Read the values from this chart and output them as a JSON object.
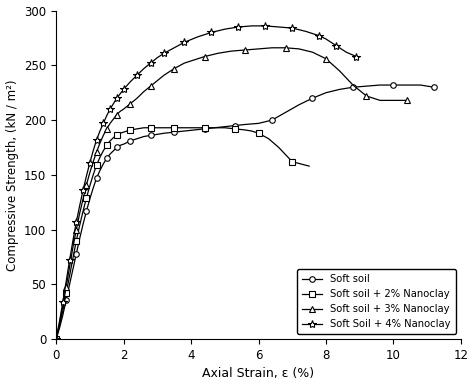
{
  "xlabel": "Axial Strain, ε (%)",
  "ylabel": "Compressive Strength, (kN / m²)",
  "xlim": [
    0,
    12
  ],
  "ylim": [
    0,
    300
  ],
  "xticks": [
    0,
    2,
    4,
    6,
    8,
    10,
    12
  ],
  "yticks": [
    0,
    50,
    100,
    150,
    200,
    250,
    300
  ],
  "soft_soil_x": [
    0,
    0.1,
    0.2,
    0.3,
    0.4,
    0.5,
    0.6,
    0.7,
    0.8,
    0.9,
    1.0,
    1.1,
    1.2,
    1.3,
    1.4,
    1.5,
    1.6,
    1.7,
    1.8,
    1.9,
    2.0,
    2.2,
    2.4,
    2.6,
    2.8,
    3.0,
    3.2,
    3.5,
    3.8,
    4.1,
    4.4,
    4.7,
    5.0,
    5.3,
    5.6,
    6.0,
    6.4,
    6.8,
    7.2,
    7.6,
    8.0,
    8.4,
    8.8,
    9.2,
    9.6,
    10.0,
    10.4,
    10.8,
    11.2
  ],
  "soft_soil_y": [
    0,
    10,
    22,
    36,
    50,
    64,
    78,
    92,
    105,
    117,
    128,
    138,
    147,
    154,
    160,
    165,
    169,
    172,
    175,
    177,
    178,
    181,
    183,
    185,
    186,
    187,
    188,
    189,
    190,
    191,
    192,
    193,
    194,
    195,
    196,
    197,
    200,
    207,
    214,
    220,
    225,
    228,
    230,
    231,
    232,
    232,
    232,
    232,
    230
  ],
  "nc2_x": [
    0,
    0.1,
    0.2,
    0.3,
    0.4,
    0.5,
    0.6,
    0.7,
    0.8,
    0.9,
    1.0,
    1.1,
    1.2,
    1.3,
    1.4,
    1.5,
    1.6,
    1.7,
    1.8,
    1.9,
    2.0,
    2.2,
    2.4,
    2.6,
    2.8,
    3.0,
    3.2,
    3.5,
    3.8,
    4.1,
    4.4,
    4.7,
    5.0,
    5.3,
    5.6,
    5.8,
    6.0,
    6.3,
    6.6,
    7.0,
    7.5
  ],
  "nc2_y": [
    0,
    12,
    26,
    42,
    58,
    74,
    90,
    104,
    117,
    129,
    140,
    150,
    159,
    166,
    172,
    177,
    181,
    184,
    186,
    188,
    189,
    191,
    192,
    193,
    193,
    193,
    193,
    193,
    193,
    193,
    193,
    193,
    193,
    192,
    191,
    190,
    188,
    183,
    175,
    162,
    158
  ],
  "nc3_x": [
    0,
    0.1,
    0.2,
    0.3,
    0.4,
    0.5,
    0.6,
    0.7,
    0.8,
    0.9,
    1.0,
    1.1,
    1.2,
    1.3,
    1.4,
    1.5,
    1.6,
    1.7,
    1.8,
    1.9,
    2.0,
    2.2,
    2.4,
    2.6,
    2.8,
    3.0,
    3.2,
    3.5,
    3.8,
    4.1,
    4.4,
    4.8,
    5.2,
    5.6,
    6.0,
    6.4,
    6.8,
    7.2,
    7.6,
    8.0,
    8.4,
    8.8,
    9.2,
    9.6,
    10.0,
    10.4
  ],
  "nc3_y": [
    0,
    14,
    30,
    48,
    66,
    84,
    100,
    115,
    128,
    141,
    152,
    162,
    171,
    179,
    186,
    192,
    197,
    201,
    205,
    208,
    210,
    215,
    220,
    226,
    231,
    236,
    241,
    247,
    252,
    255,
    258,
    261,
    263,
    264,
    265,
    266,
    266,
    265,
    262,
    256,
    245,
    232,
    222,
    218,
    218,
    218
  ],
  "nc4_x": [
    0,
    0.1,
    0.2,
    0.3,
    0.4,
    0.5,
    0.6,
    0.7,
    0.8,
    0.9,
    1.0,
    1.1,
    1.2,
    1.3,
    1.4,
    1.5,
    1.6,
    1.7,
    1.8,
    1.9,
    2.0,
    2.2,
    2.4,
    2.6,
    2.8,
    3.0,
    3.2,
    3.5,
    3.8,
    4.2,
    4.6,
    5.0,
    5.4,
    5.8,
    6.2,
    6.6,
    7.0,
    7.4,
    7.8,
    8.0,
    8.3,
    8.6,
    8.9
  ],
  "nc4_y": [
    0,
    16,
    34,
    53,
    72,
    90,
    107,
    122,
    136,
    149,
    161,
    172,
    182,
    190,
    197,
    204,
    210,
    215,
    220,
    224,
    228,
    235,
    241,
    247,
    252,
    257,
    261,
    266,
    271,
    276,
    280,
    283,
    285,
    286,
    286,
    285,
    284,
    281,
    277,
    274,
    268,
    262,
    258
  ],
  "color": "black",
  "legend_labels": [
    "Soft soil",
    "Soft soil + 2% Nanoclay",
    "Soft soil + 3% Nanoclay",
    "Soft Soil + 4% Nanoclay"
  ],
  "markers": [
    "o",
    "s",
    "^",
    "*"
  ],
  "marker_sizes": [
    4,
    4,
    5,
    6
  ],
  "marker_every": [
    3,
    3,
    3,
    2
  ]
}
